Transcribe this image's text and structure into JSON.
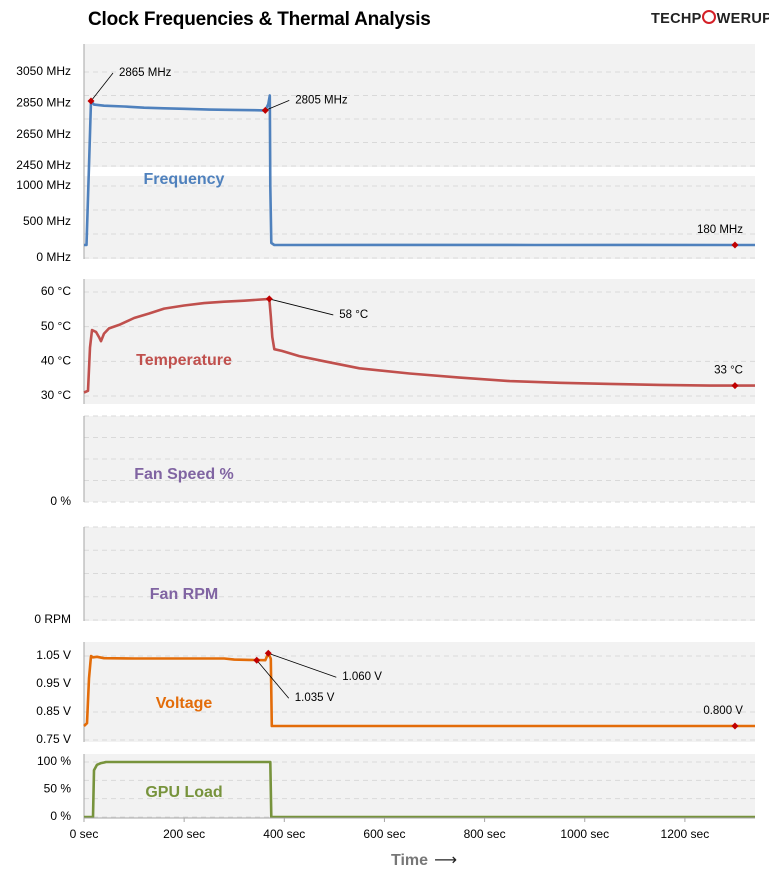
{
  "title": "Clock Frequencies & Thermal Analysis",
  "logo": {
    "prefix": "TECHP",
    "suffix": "WERUP"
  },
  "colors": {
    "frequency": "#4f81bd",
    "temperature": "#c0504d",
    "fan_speed": "#8064a2",
    "fan_rpm": "#8064a2",
    "voltage": "#e36c09",
    "gpu_load": "#77933c",
    "marker": "#c00000",
    "panel_bg": "#f2f2f2",
    "grid": "#d9d9d9",
    "logo_accent": "#d42027"
  },
  "x_axis": {
    "label": "Time",
    "arrow": "⟶",
    "range": [
      0,
      1340
    ],
    "ticks": [
      0,
      200,
      400,
      600,
      800,
      1000,
      1200
    ],
    "tick_labels": [
      "0 sec",
      "200 sec",
      "400 sec",
      "600 sec",
      "800 sec",
      "1000 sec",
      "1200 sec"
    ]
  },
  "chart_data": [
    {
      "type": "line",
      "title": "Frequency",
      "unit": "MHz",
      "broken_axis": true,
      "lower_range": [
        0,
        1000
      ],
      "upper_range": [
        2450,
        3050
      ],
      "y_ticks": [
        0,
        500,
        1000,
        2450,
        2650,
        2850,
        3050
      ],
      "y_tick_labels": [
        "0 MHz",
        "500 MHz",
        "1000 MHz",
        "2450 MHz",
        "2650 MHz",
        "2850 MHz",
        "3050 MHz"
      ],
      "series": [
        {
          "name": "Frequency",
          "points": [
            [
              0,
              180
            ],
            [
              5,
              180
            ],
            [
              10,
              2450
            ],
            [
              14,
              2865
            ],
            [
              20,
              2842
            ],
            [
              40,
              2835
            ],
            [
              80,
              2830
            ],
            [
              120,
              2822
            ],
            [
              160,
              2818
            ],
            [
              200,
              2815
            ],
            [
              250,
              2810
            ],
            [
              300,
              2808
            ],
            [
              340,
              2806
            ],
            [
              362,
              2805
            ],
            [
              368,
              2845
            ],
            [
              371,
              2900
            ],
            [
              372,
              1000
            ],
            [
              374,
              210
            ],
            [
              380,
              180
            ],
            [
              600,
              182
            ],
            [
              900,
              180
            ],
            [
              1100,
              182
            ],
            [
              1300,
              180
            ],
            [
              1340,
              180
            ]
          ]
        }
      ],
      "annotations": [
        {
          "x": 14,
          "y": 2865,
          "label": "2865 MHz"
        },
        {
          "x": 362,
          "y": 2805,
          "label": "2805 MHz"
        },
        {
          "x": 1300,
          "y": 180,
          "label": "180 MHz"
        }
      ]
    },
    {
      "type": "line",
      "title": "Temperature",
      "unit": "°C",
      "range": [
        30,
        60
      ],
      "y_ticks": [
        30,
        40,
        50,
        60
      ],
      "y_tick_labels": [
        "30 °C",
        "40 °C",
        "50 °C",
        "60 °C"
      ],
      "series": [
        {
          "name": "Temperature",
          "points": [
            [
              0,
              31
            ],
            [
              8,
              31.5
            ],
            [
              12,
              44
            ],
            [
              16,
              49
            ],
            [
              24,
              48.5
            ],
            [
              30,
              47
            ],
            [
              34,
              45.8
            ],
            [
              40,
              48
            ],
            [
              50,
              49.5
            ],
            [
              70,
              50.5
            ],
            [
              100,
              52.5
            ],
            [
              130,
              53.8
            ],
            [
              160,
              55.2
            ],
            [
              200,
              56.1
            ],
            [
              240,
              56.8
            ],
            [
              280,
              57.2
            ],
            [
              320,
              57.5
            ],
            [
              370,
              58
            ],
            [
              373,
              53
            ],
            [
              376,
              47
            ],
            [
              380,
              43.5
            ],
            [
              395,
              43
            ],
            [
              430,
              41.5
            ],
            [
              480,
              40
            ],
            [
              550,
              38
            ],
            [
              650,
              36.5
            ],
            [
              750,
              35.3
            ],
            [
              850,
              34.3
            ],
            [
              950,
              33.8
            ],
            [
              1050,
              33.5
            ],
            [
              1150,
              33.2
            ],
            [
              1250,
              33
            ],
            [
              1300,
              33
            ],
            [
              1340,
              33
            ]
          ]
        }
      ],
      "annotations": [
        {
          "x": 370,
          "y": 58,
          "label": "58 °C"
        },
        {
          "x": 1300,
          "y": 33,
          "label": "33 °C"
        }
      ]
    },
    {
      "type": "line",
      "title": "Fan Speed %",
      "unit": "%",
      "range": [
        0,
        100
      ],
      "y_ticks": [
        0
      ],
      "y_tick_labels": [
        "0 %"
      ],
      "series": []
    },
    {
      "type": "line",
      "title": "Fan RPM",
      "unit": "RPM",
      "range": [
        0,
        3000
      ],
      "y_ticks": [
        0
      ],
      "y_tick_labels": [
        "0 RPM"
      ],
      "series": []
    },
    {
      "type": "line",
      "title": "Voltage",
      "unit": "V",
      "range": [
        0.75,
        1.05
      ],
      "y_ticks": [
        0.75,
        0.85,
        0.95,
        1.05
      ],
      "y_tick_labels": [
        "0.75 V",
        "0.85 V",
        "0.95 V",
        "1.05 V"
      ],
      "series": [
        {
          "name": "Voltage",
          "points": [
            [
              0,
              0.8
            ],
            [
              6,
              0.81
            ],
            [
              10,
              0.97
            ],
            [
              14,
              1.05
            ],
            [
              18,
              1.045
            ],
            [
              26,
              1.047
            ],
            [
              40,
              1.042
            ],
            [
              100,
              1.041
            ],
            [
              200,
              1.041
            ],
            [
              280,
              1.041
            ],
            [
              300,
              1.037
            ],
            [
              330,
              1.036
            ],
            [
              362,
              1.035
            ],
            [
              368,
              1.06
            ],
            [
              373,
              1.04
            ],
            [
              375,
              0.8
            ],
            [
              500,
              0.8
            ],
            [
              800,
              0.8
            ],
            [
              1100,
              0.8
            ],
            [
              1300,
              0.8
            ],
            [
              1340,
              0.8
            ]
          ]
        }
      ],
      "annotations": [
        {
          "x": 345,
          "y": 1.035,
          "label": "1.035 V"
        },
        {
          "x": 368,
          "y": 1.06,
          "label": "1.060 V"
        },
        {
          "x": 1300,
          "y": 0.8,
          "label": "0.800 V"
        }
      ]
    },
    {
      "type": "line",
      "title": "GPU Load",
      "unit": "%",
      "range": [
        0,
        100
      ],
      "y_ticks": [
        0,
        50,
        100
      ],
      "y_tick_labels": [
        "0 %",
        "50 %",
        "100 %"
      ],
      "series": [
        {
          "name": "GPU Load",
          "points": [
            [
              0,
              0
            ],
            [
              18,
              0
            ],
            [
              20,
              85
            ],
            [
              26,
              95
            ],
            [
              34,
              98
            ],
            [
              40,
              99
            ],
            [
              44,
              100
            ],
            [
              200,
              100
            ],
            [
              300,
              100
            ],
            [
              372,
              100
            ],
            [
              374,
              0
            ],
            [
              600,
              0
            ],
            [
              1000,
              0
            ],
            [
              1340,
              0
            ]
          ]
        }
      ],
      "annotations": []
    }
  ]
}
